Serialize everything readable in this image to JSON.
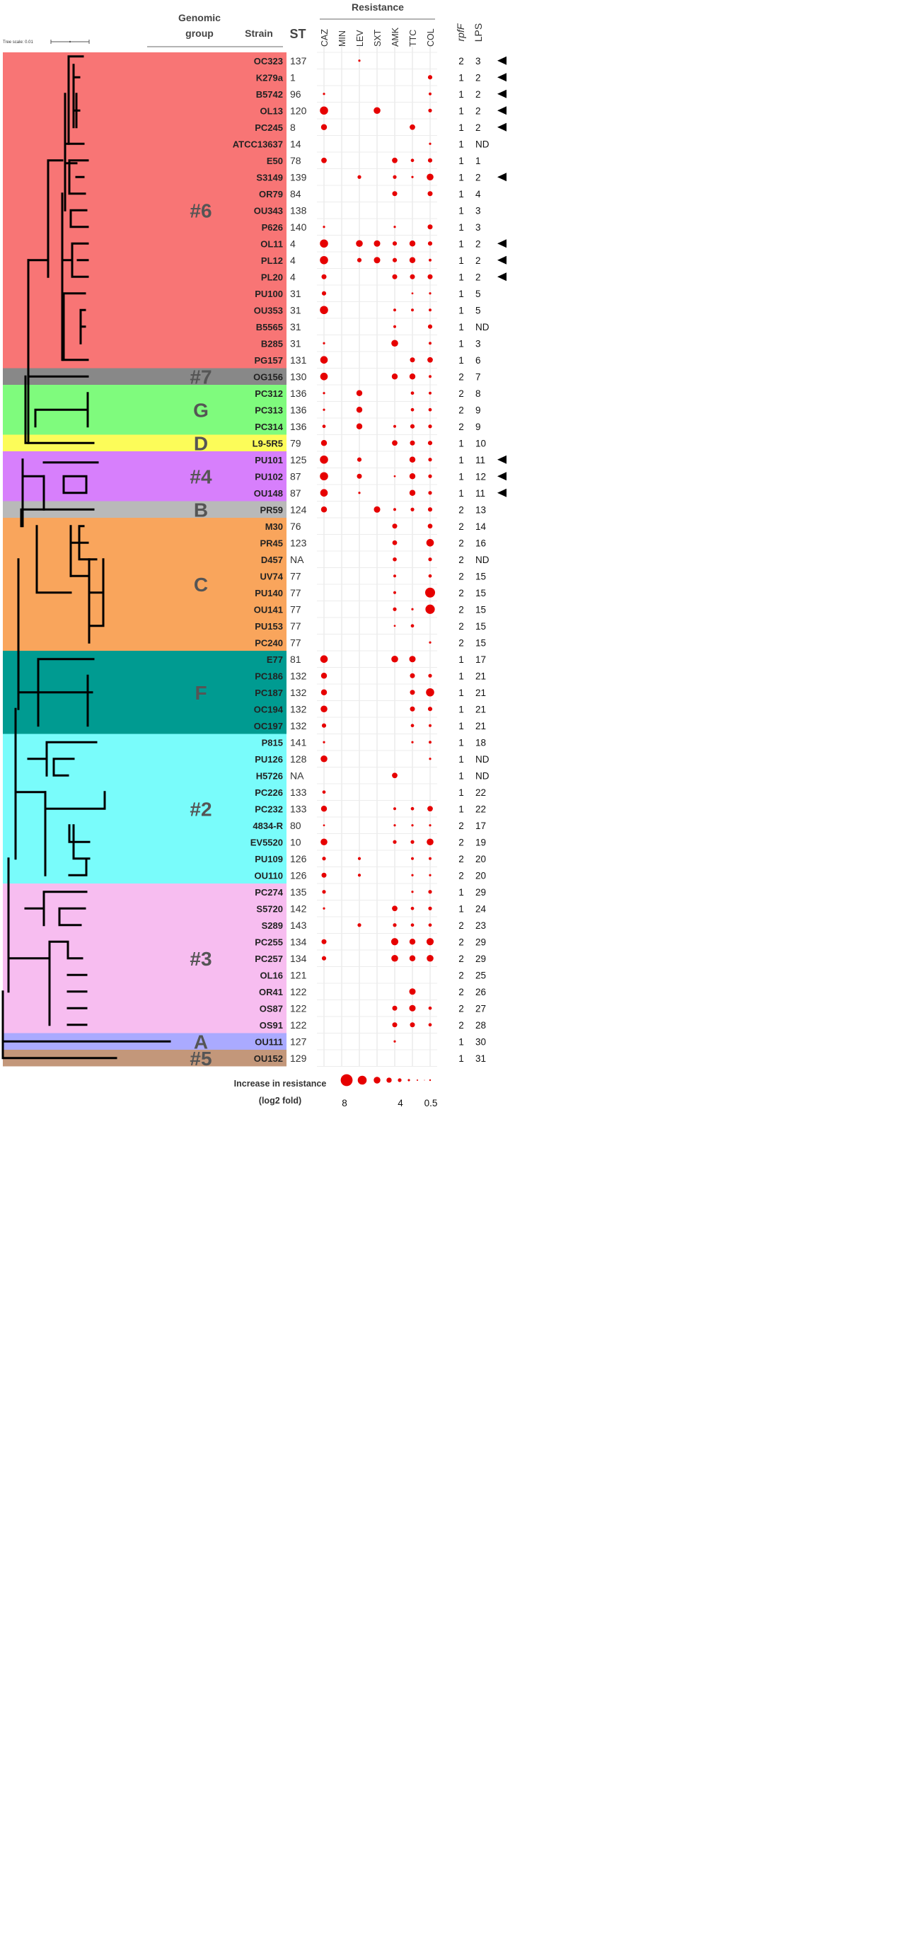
{
  "header": {
    "resistance_title": "Resistance",
    "genomic_group_line1": "Genomic",
    "genomic_group_line2": "group",
    "strain": "Strain",
    "st": "ST",
    "tree_scale_label": "Tree scale: 0.01",
    "rpff": "rpfF",
    "lps": "LPS"
  },
  "antibiotics": [
    "CAZ",
    "MIN",
    "LEV",
    "SXT",
    "AMK",
    "TTC",
    "COL"
  ],
  "colors": {
    "bubble": "#e60000",
    "line": "#000000"
  },
  "groups": [
    {
      "label": "#6",
      "color": "#f87575"
    },
    {
      "label": "#7",
      "color": "#888888"
    },
    {
      "label": "G",
      "color": "#7ffb7d"
    },
    {
      "label": "D",
      "color": "#fcfc59"
    },
    {
      "label": "#4",
      "color": "#d77ffc"
    },
    {
      "label": "B",
      "color": "#b9b9b9"
    },
    {
      "label": "C",
      "color": "#f9a55c"
    },
    {
      "label": "F",
      "color": "#009b91"
    },
    {
      "label": "#2",
      "color": "#79fcfb"
    },
    {
      "label": "#3",
      "color": "#f7bdf0"
    },
    {
      "label": "A",
      "color": "#aaaaff"
    },
    {
      "label": "#5",
      "color": "#c3977a"
    }
  ],
  "rows": [
    {
      "strain": "OC323",
      "st": "137",
      "rpff": "2",
      "lps": "3",
      "arrow": true,
      "res": [
        0,
        0,
        0.3,
        0,
        0,
        0,
        0
      ],
      "group": 0
    },
    {
      "strain": "K279a",
      "st": "1",
      "rpff": "1",
      "lps": "2",
      "arrow": true,
      "res": [
        0,
        0,
        0,
        0,
        0,
        0,
        1.5
      ],
      "group": 0
    },
    {
      "strain": "B5742",
      "st": "96",
      "rpff": "1",
      "lps": "2",
      "arrow": true,
      "res": [
        0.3,
        0,
        0,
        0,
        0,
        0,
        0.5
      ],
      "group": 0
    },
    {
      "strain": "OL13",
      "st": "120",
      "rpff": "1",
      "lps": "2",
      "arrow": true,
      "res": [
        6,
        0,
        0,
        4,
        0,
        0,
        1
      ],
      "group": 0
    },
    {
      "strain": "PC245",
      "st": "8",
      "rpff": "1",
      "lps": "2",
      "arrow": true,
      "res": [
        3,
        0,
        0,
        0,
        0,
        2.5,
        0
      ],
      "group": 0
    },
    {
      "strain": "ATCC13637",
      "st": "14",
      "rpff": "1",
      "lps": "ND",
      "arrow": false,
      "res": [
        0,
        0,
        0,
        0,
        0,
        0,
        0.3
      ],
      "group": 0
    },
    {
      "strain": "E50",
      "st": "78",
      "rpff": "1",
      "lps": "1",
      "arrow": false,
      "res": [
        2.5,
        0,
        0,
        0,
        2.5,
        0.8,
        1.5
      ],
      "group": 0
    },
    {
      "strain": "S3149",
      "st": "139",
      "rpff": "1",
      "lps": "2",
      "arrow": true,
      "res": [
        0,
        0,
        1,
        0,
        1,
        0.3,
        4
      ],
      "group": 0
    },
    {
      "strain": "OR79",
      "st": "84",
      "rpff": "1",
      "lps": "4",
      "arrow": false,
      "res": [
        0,
        0,
        0,
        0,
        2,
        0,
        2
      ],
      "group": 0
    },
    {
      "strain": "OU343",
      "st": "138",
      "rpff": "1",
      "lps": "3",
      "arrow": false,
      "res": [
        0,
        0,
        0,
        0,
        0,
        0,
        0
      ],
      "group": 0
    },
    {
      "strain": "P626",
      "st": "140",
      "rpff": "1",
      "lps": "3",
      "arrow": false,
      "res": [
        0.3,
        0,
        0,
        0,
        0.3,
        0,
        2
      ],
      "group": 0
    },
    {
      "strain": "OL11",
      "st": "4",
      "rpff": "1",
      "lps": "2",
      "arrow": true,
      "res": [
        6,
        0,
        4,
        3.5,
        1.5,
        3,
        1.5
      ],
      "group": 0
    },
    {
      "strain": "PL12",
      "st": "4",
      "rpff": "1",
      "lps": "2",
      "arrow": true,
      "res": [
        6,
        0,
        1.5,
        3.5,
        1.5,
        3,
        0.5
      ],
      "group": 0
    },
    {
      "strain": "PL20",
      "st": "4",
      "rpff": "1",
      "lps": "2",
      "arrow": true,
      "res": [
        2,
        0,
        0,
        0,
        2,
        2,
        2
      ],
      "group": 0
    },
    {
      "strain": "PU100",
      "st": "31",
      "rpff": "1",
      "lps": "5",
      "arrow": false,
      "res": [
        1.5,
        0,
        0,
        0,
        0,
        0.2,
        0.3
      ],
      "group": 0
    },
    {
      "strain": "OU353",
      "st": "31",
      "rpff": "1",
      "lps": "5",
      "arrow": false,
      "res": [
        6,
        0,
        0,
        0,
        0.5,
        0.5,
        0.5
      ],
      "group": 0
    },
    {
      "strain": "B5565",
      "st": "31",
      "rpff": "1",
      "lps": "ND",
      "arrow": false,
      "res": [
        0,
        0,
        0,
        0,
        0.5,
        0,
        1.5
      ],
      "group": 0
    },
    {
      "strain": "B285",
      "st": "31",
      "rpff": "1",
      "lps": "3",
      "arrow": false,
      "res": [
        0.3,
        0,
        0,
        0,
        4,
        0,
        0.5
      ],
      "group": 0
    },
    {
      "strain": "PG157",
      "st": "131",
      "rpff": "1",
      "lps": "6",
      "arrow": false,
      "res": [
        5,
        0,
        0,
        0,
        0,
        2,
        2.5
      ],
      "group": 0
    },
    {
      "strain": "OG156",
      "st": "130",
      "rpff": "2",
      "lps": "7",
      "arrow": false,
      "res": [
        5,
        0,
        0,
        0,
        3,
        3,
        0.5
      ],
      "group": 1
    },
    {
      "strain": "PC312",
      "st": "136",
      "rpff": "2",
      "lps": "8",
      "arrow": false,
      "res": [
        0.3,
        0,
        3,
        0,
        0,
        0.8,
        0.5
      ],
      "group": 2
    },
    {
      "strain": "PC313",
      "st": "136",
      "rpff": "2",
      "lps": "9",
      "arrow": false,
      "res": [
        0.3,
        0,
        3,
        0,
        0,
        0.8,
        0.8
      ],
      "group": 2
    },
    {
      "strain": "PC314",
      "st": "136",
      "rpff": "2",
      "lps": "9",
      "arrow": false,
      "res": [
        0.8,
        0,
        3,
        0,
        0.5,
        1.5,
        1
      ],
      "group": 2
    },
    {
      "strain": "L9-5R5",
      "st": "79",
      "rpff": "1",
      "lps": "10",
      "arrow": false,
      "res": [
        3,
        0,
        0,
        0,
        2.5,
        2,
        1.5
      ],
      "group": 3
    },
    {
      "strain": "PU101",
      "st": "125",
      "rpff": "1",
      "lps": "11",
      "arrow": true,
      "res": [
        6,
        0,
        1.5,
        0,
        0,
        3,
        1
      ],
      "group": 4
    },
    {
      "strain": "PU102",
      "st": "87",
      "rpff": "1",
      "lps": "12",
      "arrow": true,
      "res": [
        6,
        0,
        2,
        0,
        0.2,
        3,
        1
      ],
      "group": 4
    },
    {
      "strain": "OU148",
      "st": "87",
      "rpff": "1",
      "lps": "11",
      "arrow": true,
      "res": [
        5,
        0,
        0.3,
        0,
        0,
        3,
        1
      ],
      "group": 4
    },
    {
      "strain": "PR59",
      "st": "124",
      "rpff": "2",
      "lps": "13",
      "arrow": false,
      "res": [
        3,
        0,
        0,
        3.5,
        0.5,
        1,
        1.5
      ],
      "group": 5
    },
    {
      "strain": "M30",
      "st": "76",
      "rpff": "2",
      "lps": "14",
      "arrow": false,
      "res": [
        0,
        0,
        0,
        0,
        2,
        0,
        1.8
      ],
      "group": 6
    },
    {
      "strain": "PR45",
      "st": "123",
      "rpff": "2",
      "lps": "16",
      "arrow": false,
      "res": [
        0,
        0,
        0,
        0,
        1.8,
        0,
        5
      ],
      "group": 6
    },
    {
      "strain": "D457",
      "st": "NA",
      "rpff": "2",
      "lps": "ND",
      "arrow": false,
      "res": [
        0,
        0,
        0,
        0,
        1.2,
        0,
        1
      ],
      "group": 6
    },
    {
      "strain": "UV74",
      "st": "77",
      "rpff": "2",
      "lps": "15",
      "arrow": false,
      "res": [
        0,
        0,
        0,
        0,
        0.5,
        0,
        0.8
      ],
      "group": 6
    },
    {
      "strain": "PU140",
      "st": "77",
      "rpff": "2",
      "lps": "15",
      "arrow": false,
      "res": [
        0,
        0,
        0,
        0,
        0.5,
        0,
        9
      ],
      "group": 6
    },
    {
      "strain": "OU141",
      "st": "77",
      "rpff": "2",
      "lps": "15",
      "arrow": false,
      "res": [
        0,
        0,
        0,
        0,
        1,
        0.3,
        8
      ],
      "group": 6
    },
    {
      "strain": "PU153",
      "st": "77",
      "rpff": "2",
      "lps": "15",
      "arrow": false,
      "res": [
        0,
        0,
        0,
        0,
        0.2,
        0.8,
        0
      ],
      "group": 6
    },
    {
      "strain": "PC240",
      "st": "77",
      "rpff": "2",
      "lps": "15",
      "arrow": false,
      "res": [
        0,
        0,
        0,
        0,
        0,
        0,
        0.3
      ],
      "group": 6
    },
    {
      "strain": "E77",
      "st": "81",
      "rpff": "1",
      "lps": "17",
      "arrow": false,
      "res": [
        5,
        0,
        0,
        0,
        4,
        3.5,
        0
      ],
      "group": 7
    },
    {
      "strain": "PC186",
      "st": "132",
      "rpff": "1",
      "lps": "21",
      "arrow": false,
      "res": [
        3,
        0,
        0,
        0,
        0,
        2,
        1
      ],
      "group": 7
    },
    {
      "strain": "PC187",
      "st": "132",
      "rpff": "1",
      "lps": "21",
      "arrow": false,
      "res": [
        3,
        0,
        0,
        0,
        0,
        2,
        6
      ],
      "group": 7
    },
    {
      "strain": "OC194",
      "st": "132",
      "rpff": "1",
      "lps": "21",
      "arrow": false,
      "res": [
        4,
        0,
        0,
        0,
        0,
        2,
        1.5
      ],
      "group": 7
    },
    {
      "strain": "OC197",
      "st": "132",
      "rpff": "1",
      "lps": "21",
      "arrow": false,
      "res": [
        1.5,
        0,
        0,
        0,
        0,
        0.8,
        0.5
      ],
      "group": 7
    },
    {
      "strain": "P815",
      "st": "141",
      "rpff": "1",
      "lps": "18",
      "arrow": false,
      "res": [
        0.3,
        0,
        0,
        0,
        0,
        0.3,
        0.5
      ],
      "group": 8
    },
    {
      "strain": "PU126",
      "st": "128",
      "rpff": "1",
      "lps": "ND",
      "arrow": false,
      "res": [
        4,
        0,
        0,
        0,
        0,
        0,
        0.3
      ],
      "group": 8
    },
    {
      "strain": "H5726",
      "st": "NA",
      "rpff": "1",
      "lps": "ND",
      "arrow": false,
      "res": [
        0,
        0,
        0,
        0,
        2.5,
        0,
        0
      ],
      "group": 8
    },
    {
      "strain": "PC226",
      "st": "133",
      "rpff": "1",
      "lps": "22",
      "arrow": false,
      "res": [
        0.8,
        0,
        0,
        0,
        0,
        0,
        0
      ],
      "group": 8
    },
    {
      "strain": "PC232",
      "st": "133",
      "rpff": "1",
      "lps": "22",
      "arrow": false,
      "res": [
        3,
        0,
        0,
        0,
        0.5,
        0.8,
        2.5
      ],
      "group": 8
    },
    {
      "strain": "4834-R",
      "st": "80",
      "rpff": "2",
      "lps": "17",
      "arrow": false,
      "res": [
        0.2,
        0,
        0,
        0,
        0.3,
        0.3,
        0.3
      ],
      "group": 8
    },
    {
      "strain": "EV5520",
      "st": "10",
      "rpff": "2",
      "lps": "19",
      "arrow": false,
      "res": [
        4,
        0,
        0,
        0,
        1,
        1,
        4
      ],
      "group": 8
    },
    {
      "strain": "PU109",
      "st": "126",
      "rpff": "2",
      "lps": "20",
      "arrow": false,
      "res": [
        1,
        0,
        0.6,
        0,
        0,
        0.5,
        0.5
      ],
      "group": 8
    },
    {
      "strain": "OU110",
      "st": "126",
      "rpff": "2",
      "lps": "20",
      "arrow": false,
      "res": [
        2,
        0,
        0.6,
        0,
        0,
        0.3,
        0.3
      ],
      "group": 8
    },
    {
      "strain": "PC274",
      "st": "135",
      "rpff": "1",
      "lps": "29",
      "arrow": false,
      "res": [
        1,
        0,
        0,
        0,
        0,
        0.3,
        1
      ],
      "group": 9
    },
    {
      "strain": "S5720",
      "st": "142",
      "rpff": "1",
      "lps": "24",
      "arrow": false,
      "res": [
        0.3,
        0,
        0,
        0,
        2.5,
        0.8,
        1
      ],
      "group": 9
    },
    {
      "strain": "S289",
      "st": "143",
      "rpff": "2",
      "lps": "23",
      "arrow": false,
      "res": [
        0,
        0,
        1,
        0,
        1,
        0.8,
        0.8
      ],
      "group": 9
    },
    {
      "strain": "PC255",
      "st": "134",
      "rpff": "2",
      "lps": "29",
      "arrow": false,
      "res": [
        2,
        0,
        0,
        0,
        4.5,
        3,
        4.5
      ],
      "group": 9
    },
    {
      "strain": "PC257",
      "st": "134",
      "rpff": "2",
      "lps": "29",
      "arrow": false,
      "res": [
        1.5,
        0,
        0,
        0,
        4,
        3,
        4
      ],
      "group": 9
    },
    {
      "strain": "OL16",
      "st": "121",
      "rpff": "2",
      "lps": "25",
      "arrow": false,
      "res": [
        0,
        0,
        0,
        0,
        0,
        0,
        0
      ],
      "group": 9
    },
    {
      "strain": "OR41",
      "st": "122",
      "rpff": "2",
      "lps": "26",
      "arrow": false,
      "res": [
        0,
        0,
        0,
        0,
        0,
        3.5,
        0
      ],
      "group": 9
    },
    {
      "strain": "OS87",
      "st": "122",
      "rpff": "2",
      "lps": "27",
      "arrow": false,
      "res": [
        0,
        0,
        0,
        0,
        2,
        3.5,
        0.8
      ],
      "group": 9
    },
    {
      "strain": "OS91",
      "st": "122",
      "rpff": "2",
      "lps": "28",
      "arrow": false,
      "res": [
        0,
        0,
        0,
        0,
        2,
        2,
        0.8
      ],
      "group": 9
    },
    {
      "strain": "OU111",
      "st": "127",
      "rpff": "1",
      "lps": "30",
      "arrow": false,
      "res": [
        0,
        0,
        0,
        0,
        0.3,
        0,
        0
      ],
      "group": 10
    },
    {
      "strain": "OU152",
      "st": "129",
      "rpff": "1",
      "lps": "31",
      "arrow": false,
      "res": [
        0,
        0,
        0,
        0,
        0,
        0,
        0
      ],
      "group": 11
    }
  ],
  "legend": {
    "title_line1": "Increase in resistance",
    "title_line2": "(log2 fold)",
    "ticks": [
      "8",
      "4",
      "0.5"
    ],
    "bubble_values": [
      8,
      6,
      4.5,
      3.5,
      2.5,
      1.5,
      1,
      0.5
    ]
  }
}
